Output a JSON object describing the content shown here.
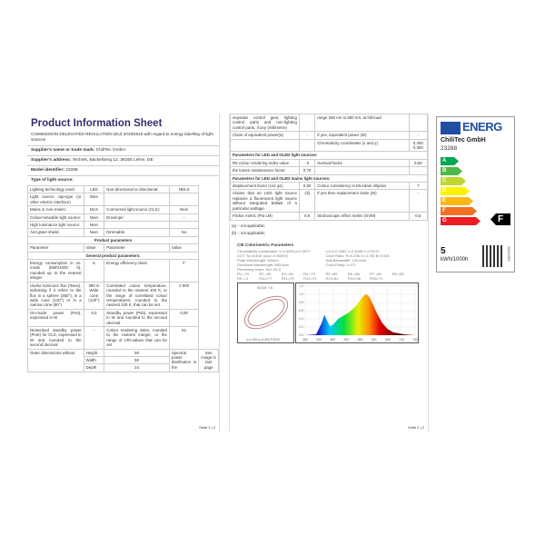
{
  "page1": {
    "title": "Product Information Sheet",
    "regulation": "COMMISSION DELEGATED REGULATION (EU) 2019/2015 with regard to energy labelling of light sources",
    "supplier_name_label": "Supplier's name or trade mark:",
    "supplier_name": "ChiliTec GmbH",
    "supplier_address_label": "Supplier's address:",
    "supplier_address": "Technik, Bäckerberg 12, 38165 Lehre, DE",
    "model_label": "Model identifier:",
    "model": "23288",
    "type_heading": "Type of light source:",
    "type_rows": [
      [
        "Lighting technology used:",
        "LED",
        "Non-directional or directional:",
        "NDLS"
      ],
      [
        "Light source cap-type (or other electric interface)",
        "Wire",
        "",
        ""
      ],
      [
        "Mains or non-mains:",
        "MLS",
        "Connected light source (CLS):",
        "Nein"
      ],
      [
        "Colour-tuneable light source:",
        "Nein",
        "Envelope:",
        "-"
      ],
      [
        "High luminance light source:",
        "Nein",
        "",
        ""
      ],
      [
        "Anti-glare shield:",
        "Nein",
        "Dimmable:",
        "No"
      ]
    ],
    "product_params": "Product parameters",
    "col_headers": [
      "Parameter",
      "Value",
      "Parameter",
      "Value"
    ],
    "general": "General product parameters:",
    "param_rows": [
      [
        "Energy consumption in on-mode (kWh/1000 h), rounded up to the nearest integer",
        "5",
        "Energy efficiency class",
        "F"
      ],
      [
        "Useful luminous flux (Φuse), indicating if it refers to the flux in a sphere (360°), in a wide cone (120°) or in a narrow cone (90°)",
        "390 in Wide cone (120°)",
        "Correlated colour temperature, rounded to the nearest 100 K, or the range of correlated colour temperatures, rounded to the nearest 100 K, that can be set",
        "2 900"
      ],
      [
        "On-mode power (Pon), expressed in W",
        "5,0",
        "Standby power (Psb), expressed in W and rounded to the second decimal",
        "0,00"
      ],
      [
        "Networked standby power (Pnet) for CLS, expressed in W and rounded to the second decimal",
        "-",
        "Colour rendering index, rounded to the nearest integer, or the range of CRI-values that can be set",
        "81"
      ]
    ],
    "dims_label": "Outer dimensions without",
    "dims": [
      [
        "Height",
        "50"
      ],
      [
        "Width",
        "50"
      ],
      [
        "Depth",
        "24"
      ]
    ],
    "spd_label": "Spectral power distribution in the",
    "spd_value": "See image in last page",
    "footer": "Seite 1 | 2"
  },
  "page2": {
    "top_left": "separate control gear, lighting control parts and non-lighting control parts, if any (millimetre)",
    "top_right": "range 250 nm to 800 nm, at full-load",
    "rows1": [
      [
        "Claim of equivalent power(a)",
        "-",
        "If yes, equivalent power (W)",
        "-"
      ],
      [
        "",
        "",
        "Chromaticity coordinates (x and y)",
        "0,400\n0,300"
      ]
    ],
    "led_heading": "Parameters for LED and OLED light sources:",
    "rows2": [
      [
        "R9 colour rendering index value",
        "-3",
        "Survival factor",
        "0,50"
      ],
      [
        "the lumen maintenance factor",
        "0,70",
        "",
        ""
      ]
    ],
    "mains_heading": "Parameters for LED and OLED mains light sources:",
    "rows3": [
      [
        "displacement factor (cos φ1)",
        "0,90",
        "Colour consistency in McAdam ellipses",
        "7"
      ],
      [
        "Claims that an LED light source replaces a fluorescent light source without integrated ballast of a particular wattage.",
        "-(b)",
        "If yes then replacement claim (W)",
        "-"
      ],
      [
        "Flicker metric (Pst LM)",
        "0,9",
        "Stroboscopic effect metric (SVM)",
        "0,5"
      ]
    ],
    "notes": [
      "(a) -: not applicable;",
      "(b) -: not applicable;"
    ],
    "cie": {
      "title": "CIE Colorimetric Parameters",
      "lines": [
        [
          "Chromaticity coordinates: x=0.4260 y=0.3977",
          "u'(v')=0.2462 v=0.3448 v'=0.5172"
        ],
        [
          "CCT: Tc=3161K (duv=-0.00097)",
          "Color Ratio: R=0.236 G=0.740 B=0.024"
        ],
        [
          "Peak Wavelength: 600nm",
          "Half Bandwidth: 125.6nm"
        ],
        [
          "Dominant Wavelength: 583.6nm",
          "Color Purity: 0.472"
        ]
      ],
      "ra": "Rendering Index: Ra= 81.0",
      "r_values": [
        "R1 =79",
        "R2 =90",
        "R3 =96",
        "R4 =79",
        "R5 =80",
        "R6 =88",
        "R7 =81",
        "R8 =55",
        "R9 =-3",
        "R10=77",
        "R11=79",
        "R12=73",
        "R13=82",
        "R14=98",
        "R15=71"
      ],
      "ellipse_title": "SDCM: 7.6",
      "ellipse_caption": "x=0.400 y=0.400 F3000",
      "chart_data": {
        "type": "area",
        "x_ticks": [
          "380",
          "430",
          "480",
          "530",
          "580",
          "630",
          "680",
          "730",
          "780"
        ],
        "y_ticks": [
          "0.0",
          "0.2",
          "0.4",
          "0.6",
          "0.8",
          "1.0",
          "1.2"
        ],
        "ylim": [
          0,
          1.2
        ],
        "xlim": [
          380,
          780
        ],
        "x": [
          380,
          420,
          440,
          450,
          460,
          470,
          480,
          500,
          520,
          540,
          560,
          580,
          590,
          600,
          610,
          620,
          640,
          660,
          680,
          700,
          740,
          780
        ],
        "values": [
          0,
          0.02,
          0.3,
          0.5,
          0.35,
          0.22,
          0.25,
          0.4,
          0.48,
          0.56,
          0.68,
          0.85,
          0.95,
          1.0,
          0.97,
          0.85,
          0.55,
          0.3,
          0.15,
          0.07,
          0.02,
          0
        ]
      }
    },
    "footer": "Seite 2 | 2"
  },
  "label": {
    "energy": "ENERG",
    "supplier": "ChiliTec GmbH",
    "model": "23288",
    "classes": [
      "A",
      "B",
      "C",
      "D",
      "E",
      "F",
      "G"
    ],
    "class_colors": [
      "#00a651",
      "#50b848",
      "#bfd730",
      "#fff200",
      "#fdb913",
      "#f37021",
      "#ed1c24"
    ],
    "rating": "F",
    "consumption": "5",
    "unit": "kWh/1000h",
    "regulation": "2019/2015"
  }
}
